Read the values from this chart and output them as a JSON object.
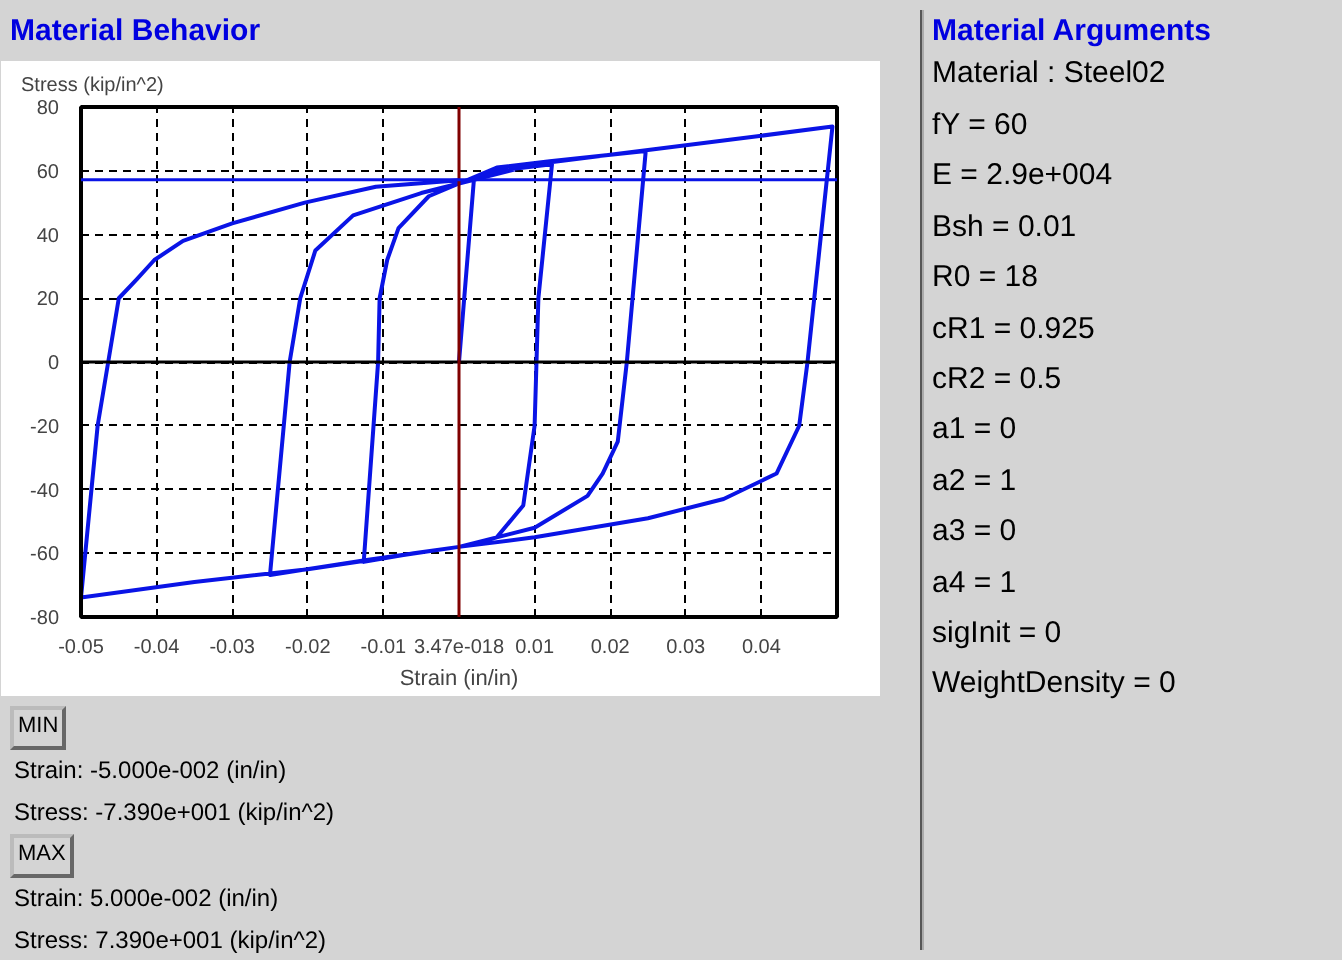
{
  "chart_data": {
    "type": "line",
    "title": "Material Behavior",
    "xlabel": "Strain (in/in)",
    "ylabel": "Stress (kip/in^2)",
    "xlim": [
      -0.05,
      0.05
    ],
    "ylim": [
      -80,
      80
    ],
    "xticks": [
      -0.05,
      -0.04,
      -0.03,
      -0.02,
      -0.01,
      {
        "value": 0,
        "label": "3.47e-018"
      },
      0.01,
      0.02,
      0.03,
      0.04
    ],
    "yticks": [
      -80,
      -60,
      -40,
      -20,
      0,
      20,
      40,
      60,
      80
    ],
    "grid": true,
    "series": [
      {
        "color": "#0a14e6",
        "x": [
          0,
          0.002,
          0.005,
          0.0123,
          0.0105,
          0.01,
          0.0085,
          0.005,
          0.002,
          0,
          -0.006,
          -0.0126,
          -0.0107,
          -0.0105,
          -0.0095,
          -0.008,
          -0.004,
          0,
          0.005,
          0.012,
          0.0247,
          0.0222,
          0.021,
          0.019,
          0.017,
          0.01,
          0,
          -0.012,
          -0.025,
          -0.0224,
          -0.021,
          -0.019,
          -0.014,
          -0.005,
          0,
          0.01,
          0.02,
          0.03,
          0.04,
          0.0494,
          0.0461,
          0.045,
          0.042,
          0.035,
          0.025,
          0.01,
          0,
          -0.02,
          -0.035,
          -0.05,
          -0.0478,
          -0.0464,
          -0.045,
          -0.0426,
          -0.0403,
          -0.0365,
          -0.03,
          -0.0204,
          -0.011,
          0
        ],
        "values": [
          0,
          58,
          60,
          62,
          20,
          -20,
          -45,
          -55,
          -57,
          -58,
          -60,
          -62.7,
          0,
          20,
          32,
          42,
          52,
          56,
          61,
          63,
          66.2,
          0,
          -25,
          -35,
          -42,
          -52,
          -58,
          -62,
          -66.8,
          0,
          20,
          35,
          46,
          53,
          56,
          62,
          65,
          68,
          71,
          73.9,
          0,
          -20,
          -35,
          -43,
          -49,
          -55,
          -58,
          -65,
          -69,
          -73.9,
          -20,
          0,
          20,
          26,
          32,
          38,
          43.5,
          50,
          55,
          57
        ]
      }
    ],
    "ref_lines": [
      {
        "axis": "y",
        "value": 0,
        "color": "#000000"
      },
      {
        "axis": "x",
        "value": 0,
        "color": "#800000"
      },
      {
        "axis": "y",
        "value": 57.2,
        "color": "#0a14e6"
      }
    ],
    "annotations": [
      "MIN",
      "Strain: -5.000e-002 (in/in)",
      "Stress: -7.390e+001 (kip/in^2)",
      "MAX",
      "Strain: 5.000e-002 (in/in)",
      "Stress: 7.390e+001 (kip/in^2)",
      "Material Arguments",
      "Material : Steel02",
      "fY = 60",
      "E = 2.9e+004",
      "Bsh = 0.01",
      "R0 = 18",
      "cR1 = 0.925",
      "cR2 = 0.5",
      "a1 = 0",
      "a2 = 1",
      "a3 = 0",
      "a4 = 1",
      "sigInit = 0",
      "WeightDensity = 0"
    ]
  }
}
